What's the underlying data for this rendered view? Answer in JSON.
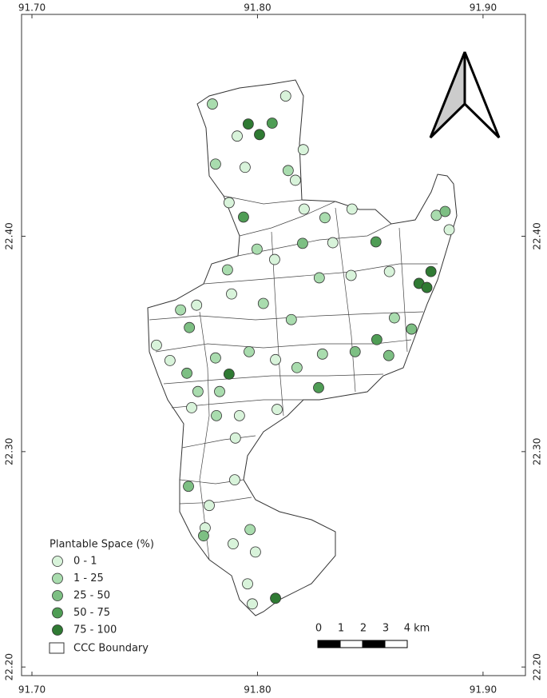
{
  "map": {
    "xlim": [
      91.6954,
      91.9188
    ],
    "ylim": [
      22.196,
      22.503
    ],
    "xticks": [
      {
        "value": 91.7,
        "label": "91.70"
      },
      {
        "value": 91.8,
        "label": "91.80"
      },
      {
        "value": 91.9,
        "label": "91.90"
      }
    ],
    "yticks": [
      {
        "value": 22.2,
        "label": "22.20"
      },
      {
        "value": 22.3,
        "label": "22.30"
      },
      {
        "value": 22.4,
        "label": "22.40"
      }
    ],
    "legend": {
      "title": "Plantable Space (%)",
      "classes": [
        {
          "label": "0 - 1",
          "color": "#d8f3da"
        },
        {
          "label": "1 - 25",
          "color": "#a9dcae"
        },
        {
          "label": "25 - 50",
          "color": "#7dbf83"
        },
        {
          "label": "50 - 75",
          "color": "#4f9d55"
        },
        {
          "label": "75 - 100",
          "color": "#2f7a33"
        }
      ],
      "boundary": "CCC Boundary"
    },
    "scale_bar": {
      "labels": [
        "0",
        "1",
        "2",
        "3",
        "4 km"
      ]
    },
    "points": [
      {
        "lon": 91.78,
        "lat": 22.4614,
        "class": 1
      },
      {
        "lon": 91.7959,
        "lat": 22.4521,
        "class": 4
      },
      {
        "lon": 91.8009,
        "lat": 22.4472,
        "class": 4
      },
      {
        "lon": 91.8065,
        "lat": 22.4525,
        "class": 3
      },
      {
        "lon": 91.8125,
        "lat": 22.4651,
        "class": 0
      },
      {
        "lon": 91.791,
        "lat": 22.4465,
        "class": 0
      },
      {
        "lon": 91.7814,
        "lat": 22.4335,
        "class": 1
      },
      {
        "lon": 91.7945,
        "lat": 22.432,
        "class": 0
      },
      {
        "lon": 91.8136,
        "lat": 22.4305,
        "class": 1
      },
      {
        "lon": 91.8203,
        "lat": 22.4402,
        "class": 0
      },
      {
        "lon": 91.8168,
        "lat": 22.426,
        "class": 0
      },
      {
        "lon": 91.7874,
        "lat": 22.4156,
        "class": 0
      },
      {
        "lon": 91.7938,
        "lat": 22.4089,
        "class": 3
      },
      {
        "lon": 91.8207,
        "lat": 22.4126,
        "class": 0
      },
      {
        "lon": 91.8299,
        "lat": 22.4086,
        "class": 1
      },
      {
        "lon": 91.8419,
        "lat": 22.4126,
        "class": 0
      },
      {
        "lon": 91.8525,
        "lat": 22.3974,
        "class": 3
      },
      {
        "lon": 91.8334,
        "lat": 22.397,
        "class": 0
      },
      {
        "lon": 91.82,
        "lat": 22.3967,
        "class": 2
      },
      {
        "lon": 91.7998,
        "lat": 22.394,
        "class": 1
      },
      {
        "lon": 91.8076,
        "lat": 22.3892,
        "class": 0
      },
      {
        "lon": 91.8274,
        "lat": 22.3807,
        "class": 1
      },
      {
        "lon": 91.8415,
        "lat": 22.3818,
        "class": 0
      },
      {
        "lon": 91.8585,
        "lat": 22.3836,
        "class": 0
      },
      {
        "lon": 91.8769,
        "lat": 22.3836,
        "class": 4
      },
      {
        "lon": 91.8716,
        "lat": 22.3781,
        "class": 4
      },
      {
        "lon": 91.8751,
        "lat": 22.3762,
        "class": 4
      },
      {
        "lon": 91.8793,
        "lat": 22.4097,
        "class": 1
      },
      {
        "lon": 91.8832,
        "lat": 22.4115,
        "class": 2
      },
      {
        "lon": 91.885,
        "lat": 22.403,
        "class": 0
      },
      {
        "lon": 91.7867,
        "lat": 22.3844,
        "class": 1
      },
      {
        "lon": 91.7885,
        "lat": 22.3732,
        "class": 0
      },
      {
        "lon": 91.7659,
        "lat": 22.3658,
        "class": 1
      },
      {
        "lon": 91.773,
        "lat": 22.368,
        "class": 0
      },
      {
        "lon": 91.7698,
        "lat": 22.3576,
        "class": 2
      },
      {
        "lon": 91.7552,
        "lat": 22.3494,
        "class": 0
      },
      {
        "lon": 91.7612,
        "lat": 22.3423,
        "class": 0
      },
      {
        "lon": 91.7814,
        "lat": 22.3435,
        "class": 1
      },
      {
        "lon": 91.7874,
        "lat": 22.336,
        "class": 4
      },
      {
        "lon": 91.7687,
        "lat": 22.3364,
        "class": 2
      },
      {
        "lon": 91.7736,
        "lat": 22.3279,
        "class": 1
      },
      {
        "lon": 91.7832,
        "lat": 22.3279,
        "class": 1
      },
      {
        "lon": 91.7708,
        "lat": 22.3204,
        "class": 0
      },
      {
        "lon": 91.7818,
        "lat": 22.3167,
        "class": 1
      },
      {
        "lon": 91.7963,
        "lat": 22.3464,
        "class": 1
      },
      {
        "lon": 91.808,
        "lat": 22.3427,
        "class": 0
      },
      {
        "lon": 91.8175,
        "lat": 22.339,
        "class": 1
      },
      {
        "lon": 91.8271,
        "lat": 22.3297,
        "class": 3
      },
      {
        "lon": 91.8288,
        "lat": 22.3453,
        "class": 1
      },
      {
        "lon": 91.8433,
        "lat": 22.3464,
        "class": 2
      },
      {
        "lon": 91.8582,
        "lat": 22.3446,
        "class": 2
      },
      {
        "lon": 91.8529,
        "lat": 22.352,
        "class": 3
      },
      {
        "lon": 91.8607,
        "lat": 22.3621,
        "class": 1
      },
      {
        "lon": 91.8683,
        "lat": 22.3569,
        "class": 2
      },
      {
        "lon": 91.8087,
        "lat": 22.3196,
        "class": 0
      },
      {
        "lon": 91.792,
        "lat": 22.3167,
        "class": 0
      },
      {
        "lon": 91.7902,
        "lat": 22.3063,
        "class": 0
      },
      {
        "lon": 91.7694,
        "lat": 22.2839,
        "class": 2
      },
      {
        "lon": 91.7786,
        "lat": 22.275,
        "class": 0
      },
      {
        "lon": 91.7899,
        "lat": 22.2869,
        "class": 0
      },
      {
        "lon": 91.7768,
        "lat": 22.2646,
        "class": 0
      },
      {
        "lon": 91.7761,
        "lat": 22.2609,
        "class": 2
      },
      {
        "lon": 91.7967,
        "lat": 22.2638,
        "class": 1
      },
      {
        "lon": 91.7892,
        "lat": 22.2572,
        "class": 0
      },
      {
        "lon": 91.7991,
        "lat": 22.2534,
        "class": 0
      },
      {
        "lon": 91.7956,
        "lat": 22.2386,
        "class": 0
      },
      {
        "lon": 91.7977,
        "lat": 22.2293,
        "class": 0
      },
      {
        "lon": 91.808,
        "lat": 22.2319,
        "class": 4
      },
      {
        "lon": 91.815,
        "lat": 22.3613,
        "class": 1
      },
      {
        "lon": 91.8026,
        "lat": 22.3688,
        "class": 1
      }
    ]
  }
}
